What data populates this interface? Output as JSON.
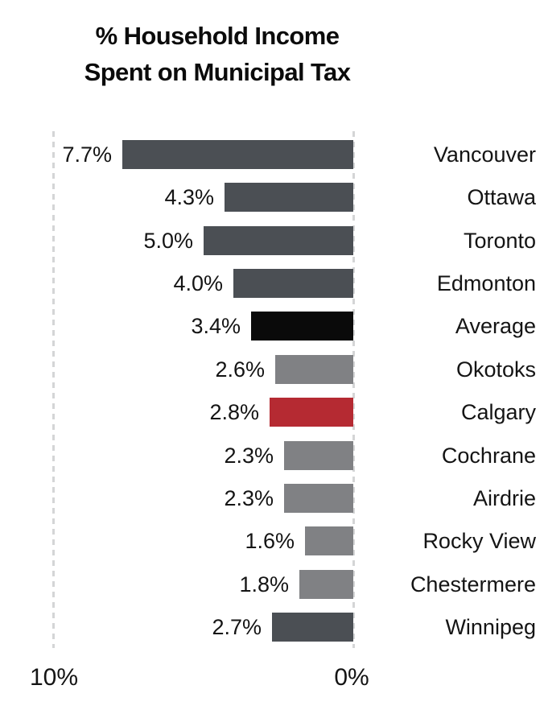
{
  "title": {
    "line1": "% Household Income",
    "line2": "Spent on Municipal Tax"
  },
  "chart_data": {
    "type": "bar",
    "orientation": "horizontal",
    "title": "% Household Income Spent on Municipal Tax",
    "categories": [
      "Vancouver",
      "Ottawa",
      "Toronto",
      "Edmonton",
      "Average",
      "Okotoks",
      "Calgary",
      "Cochrane",
      "Airdrie",
      "Rocky View",
      "Chestermere",
      "Winnipeg"
    ],
    "values": [
      7.7,
      4.3,
      5.0,
      4.0,
      3.4,
      2.6,
      2.8,
      2.3,
      2.3,
      1.6,
      1.8,
      2.7
    ],
    "value_labels": [
      "7.7%",
      "4.3%",
      "5.0%",
      "4.0%",
      "3.4%",
      "2.6%",
      "2.8%",
      "2.3%",
      "2.3%",
      "1.6%",
      "1.8%",
      "2.7%"
    ],
    "bar_colors": [
      "#4B4F54",
      "#4B4F54",
      "#4B4F54",
      "#4B4F54",
      "#0A0A0A",
      "#808184",
      "#B52A32",
      "#808184",
      "#808184",
      "#808184",
      "#808184",
      "#4B4F54"
    ],
    "xlabel": "",
    "ylabel": "",
    "xlim": [
      10,
      0
    ],
    "axis": {
      "left_label": "10%",
      "right_label": "0%",
      "min": 0,
      "max": 10,
      "gridlines": "dashed-vertical"
    },
    "legend": "none"
  },
  "colors": {
    "dark_gray": "#4B4F54",
    "medium_gray": "#808184",
    "black": "#0A0A0A",
    "red": "#B52A32",
    "gridline": "#D4D5D6",
    "text": "#141414",
    "background": "#FFFFFF"
  }
}
